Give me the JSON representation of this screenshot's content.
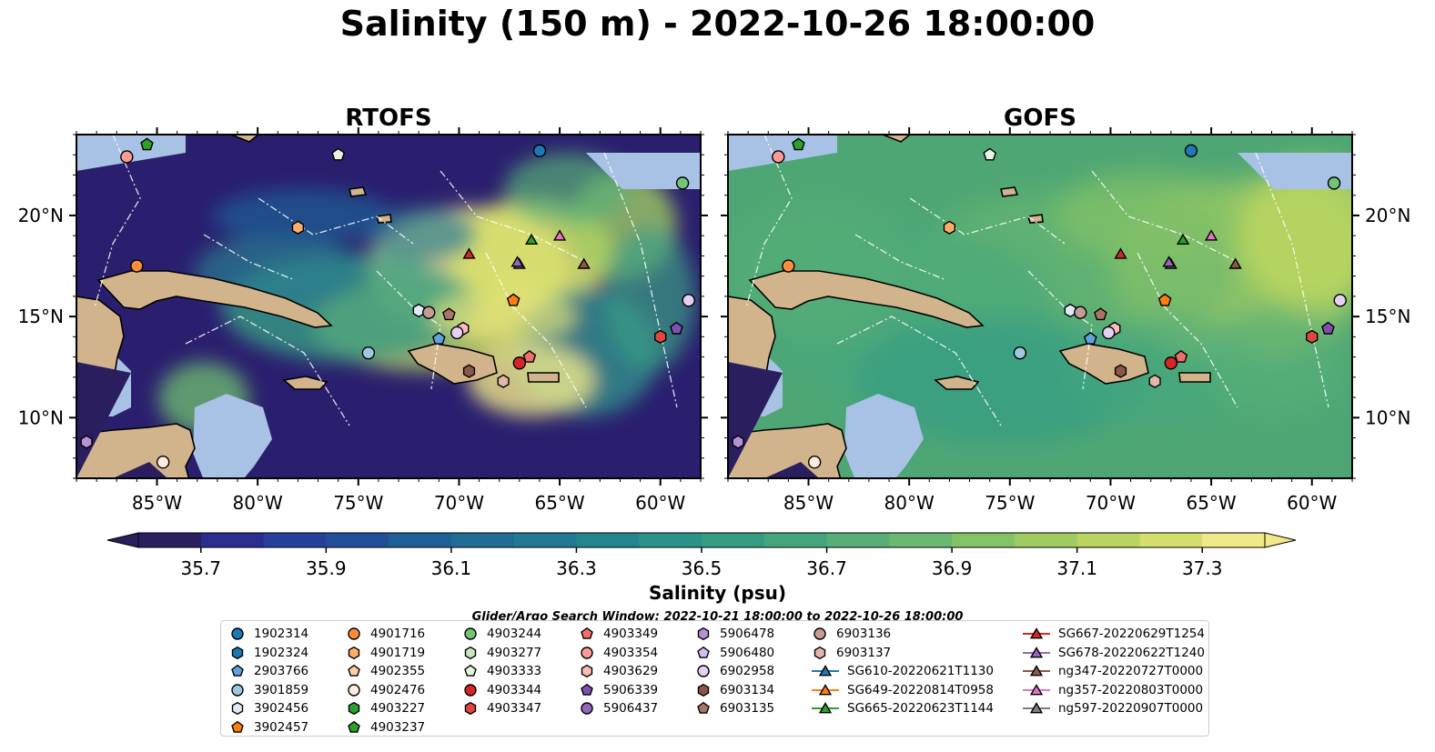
{
  "title": "Salinity (150 m) - 2022-10-26 18:00:00",
  "search_window": "Glider/Argo Search Window: 2022-10-21 18:00:00 to 2022-10-26 18:00:00",
  "chart_data": [
    {
      "type": "heatmap",
      "title": "RTOFS",
      "field": "Salinity at 150 m",
      "lon_range": [
        -89,
        -58
      ],
      "lat_range": [
        7,
        24
      ],
      "x_ticks": [
        "85°W",
        "80°W",
        "75°W",
        "70°W",
        "65°W",
        "60°W"
      ],
      "y_ticks": [
        "10°N",
        "15°N",
        "20°N"
      ]
    },
    {
      "type": "heatmap",
      "title": "GOFS",
      "field": "Salinity at 150 m",
      "lon_range": [
        -89,
        -58
      ],
      "lat_range": [
        7,
        24
      ],
      "x_ticks": [
        "85°W",
        "80°W",
        "75°W",
        "70°W",
        "65°W",
        "60°W"
      ],
      "y_ticks": [
        "10°N",
        "15°N",
        "20°N"
      ]
    }
  ],
  "colorbar": {
    "label": "Salinity (psu)",
    "min": 35.6,
    "max": 37.4,
    "tick_labels": [
      "35.7",
      "35.9",
      "36.1",
      "36.3",
      "36.5",
      "36.7",
      "36.9",
      "37.1",
      "37.3"
    ],
    "colors": [
      "#2b1e5f",
      "#2a2c8f",
      "#273f9c",
      "#234f9a",
      "#1f5f97",
      "#1f6c94",
      "#227992",
      "#23868e",
      "#2a928a",
      "#359c84",
      "#45a67e",
      "#57af77",
      "#6bb870",
      "#83c266",
      "#9fcb62",
      "#b9d560",
      "#d6df6d",
      "#f1e88a"
    ]
  },
  "colors": {
    "land": "#d2b48c",
    "shallow": "#a7c2e5",
    "rtofs_low": "#2a1f6e",
    "gofs_mid": "#4ea674"
  },
  "legend": [
    {
      "label": "1902314",
      "marker": "circle",
      "color": "#1f77b4"
    },
    {
      "label": "1902324",
      "marker": "hexagon",
      "color": "#1f77b4"
    },
    {
      "label": "2903766",
      "marker": "pentagon",
      "color": "#5fa2dd"
    },
    {
      "label": "3901859",
      "marker": "circle",
      "color": "#9ecae1"
    },
    {
      "label": "3902456",
      "marker": "hexagon",
      "color": "#deebf7"
    },
    {
      "label": "3902457",
      "marker": "pentagon",
      "color": "#ff7f0e"
    },
    {
      "label": "4901716",
      "marker": "circle",
      "color": "#fd8d3c"
    },
    {
      "label": "4901719",
      "marker": "hexagon",
      "color": "#fdae6b"
    },
    {
      "label": "4902355",
      "marker": "pentagon",
      "color": "#fdd0a2"
    },
    {
      "label": "4902476",
      "marker": "circle",
      "color": "#feedde"
    },
    {
      "label": "4903227",
      "marker": "hexagon",
      "color": "#2ca02c"
    },
    {
      "label": "4903237",
      "marker": "pentagon",
      "color": "#2ca02c"
    },
    {
      "label": "4903244",
      "marker": "circle",
      "color": "#74c476"
    },
    {
      "label": "4903277",
      "marker": "hexagon",
      "color": "#c7e9c0"
    },
    {
      "label": "4903333",
      "marker": "pentagon",
      "color": "#e5f5e0"
    },
    {
      "label": "4903344",
      "marker": "circle",
      "color": "#d62728"
    },
    {
      "label": "4903347",
      "marker": "hexagon",
      "color": "#e0453e"
    },
    {
      "label": "4903349",
      "marker": "pentagon",
      "color": "#ef6f6c"
    },
    {
      "label": "4903354",
      "marker": "circle",
      "color": "#fb9a99"
    },
    {
      "label": "4903629",
      "marker": "hexagon",
      "color": "#fcbbb9"
    },
    {
      "label": "5906339",
      "marker": "pentagon",
      "color": "#7f4fb4"
    },
    {
      "label": "5906437",
      "marker": "circle",
      "color": "#9467bd"
    },
    {
      "label": "5906478",
      "marker": "hexagon",
      "color": "#b392d5"
    },
    {
      "label": "5906480",
      "marker": "pentagon",
      "color": "#d4bdf0"
    },
    {
      "label": "6902958",
      "marker": "circle",
      "color": "#e6cff5"
    },
    {
      "label": "6903134",
      "marker": "hexagon",
      "color": "#8c564b"
    },
    {
      "label": "6903135",
      "marker": "pentagon",
      "color": "#a97464"
    },
    {
      "label": "6903136",
      "marker": "circle",
      "color": "#c49c94"
    },
    {
      "label": "6903137",
      "marker": "hexagon",
      "color": "#e2b7a8"
    },
    {
      "label": "SG610-20220621T1130",
      "marker": "triangle",
      "color": "#1f77b4"
    },
    {
      "label": "SG649-20220814T0958",
      "marker": "triangle",
      "color": "#ff7f0e"
    },
    {
      "label": "SG665-20220623T1144",
      "marker": "triangle",
      "color": "#2ca02c"
    },
    {
      "label": "SG667-20220629T1254",
      "marker": "triangle",
      "color": "#d62728"
    },
    {
      "label": "SG678-20220622T1240",
      "marker": "triangle",
      "color": "#9467bd"
    },
    {
      "label": "ng347-20220727T0000",
      "marker": "triangle",
      "color": "#8c564b"
    },
    {
      "label": "ng357-20220803T0000",
      "marker": "triangle",
      "color": "#e377c2"
    },
    {
      "label": "ng597-20220907T0000",
      "marker": "triangle",
      "color": "#7f7f7f"
    }
  ],
  "observations": [
    {
      "lon": -85.5,
      "lat": 23.5,
      "marker": "pentagon",
      "color": "#2ca02c"
    },
    {
      "lon": -86.5,
      "lat": 22.9,
      "marker": "circle",
      "color": "#fb9a99"
    },
    {
      "lon": -76.0,
      "lat": 23.0,
      "marker": "pentagon",
      "color": "#e5f5e0"
    },
    {
      "lon": -66.0,
      "lat": 23.2,
      "marker": "circle",
      "color": "#1f77b4"
    },
    {
      "lon": -58.9,
      "lat": 21.6,
      "marker": "circle",
      "color": "#74c476"
    },
    {
      "lon": -78.0,
      "lat": 19.4,
      "marker": "hexagon",
      "color": "#fdae6b"
    },
    {
      "lon": -86.0,
      "lat": 17.5,
      "marker": "circle",
      "color": "#fd8d3c"
    },
    {
      "lon": -69.5,
      "lat": 18.1,
      "marker": "triangle",
      "color": "#d62728"
    },
    {
      "lon": -66.4,
      "lat": 18.8,
      "marker": "triangle",
      "color": "#2ca02c"
    },
    {
      "lon": -65.0,
      "lat": 19.0,
      "marker": "triangle",
      "color": "#e377c2"
    },
    {
      "lon": -67.0,
      "lat": 17.6,
      "marker": "triangle",
      "color": "#7f7f7f"
    },
    {
      "lon": -67.1,
      "lat": 17.7,
      "marker": "triangle",
      "color": "#9467bd"
    },
    {
      "lon": -63.8,
      "lat": 17.6,
      "marker": "triangle",
      "color": "#8c564b"
    },
    {
      "lon": -67.3,
      "lat": 15.8,
      "marker": "pentagon",
      "color": "#ff7f0e"
    },
    {
      "lon": -58.6,
      "lat": 15.8,
      "marker": "circle",
      "color": "#e6cff5"
    },
    {
      "lon": -72.0,
      "lat": 15.3,
      "marker": "hexagon",
      "color": "#deebf7"
    },
    {
      "lon": -71.5,
      "lat": 15.2,
      "marker": "circle",
      "color": "#c49c94"
    },
    {
      "lon": -70.5,
      "lat": 15.1,
      "marker": "pentagon",
      "color": "#a97464"
    },
    {
      "lon": -69.8,
      "lat": 14.4,
      "marker": "hexagon",
      "color": "#fcbbb9"
    },
    {
      "lon": -70.1,
      "lat": 14.2,
      "marker": "circle",
      "color": "#e6cff5"
    },
    {
      "lon": -71.0,
      "lat": 13.9,
      "marker": "pentagon",
      "color": "#5fa2dd"
    },
    {
      "lon": -59.2,
      "lat": 14.4,
      "marker": "pentagon",
      "color": "#7f4fb4"
    },
    {
      "lon": -60.0,
      "lat": 14.0,
      "marker": "hexagon",
      "color": "#e0453e"
    },
    {
      "lon": -74.5,
      "lat": 13.2,
      "marker": "circle",
      "color": "#9ecae1"
    },
    {
      "lon": -66.5,
      "lat": 13.0,
      "marker": "pentagon",
      "color": "#ef6f6c"
    },
    {
      "lon": -67.0,
      "lat": 12.7,
      "marker": "circle",
      "color": "#d62728"
    },
    {
      "lon": -69.5,
      "lat": 12.3,
      "marker": "hexagon",
      "color": "#8c564b"
    },
    {
      "lon": -67.8,
      "lat": 11.8,
      "marker": "hexagon",
      "color": "#e2b7a8"
    },
    {
      "lon": -88.5,
      "lat": 8.8,
      "marker": "hexagon",
      "color": "#b392d5"
    },
    {
      "lon": -84.7,
      "lat": 7.8,
      "marker": "circle",
      "color": "#feedde"
    }
  ]
}
